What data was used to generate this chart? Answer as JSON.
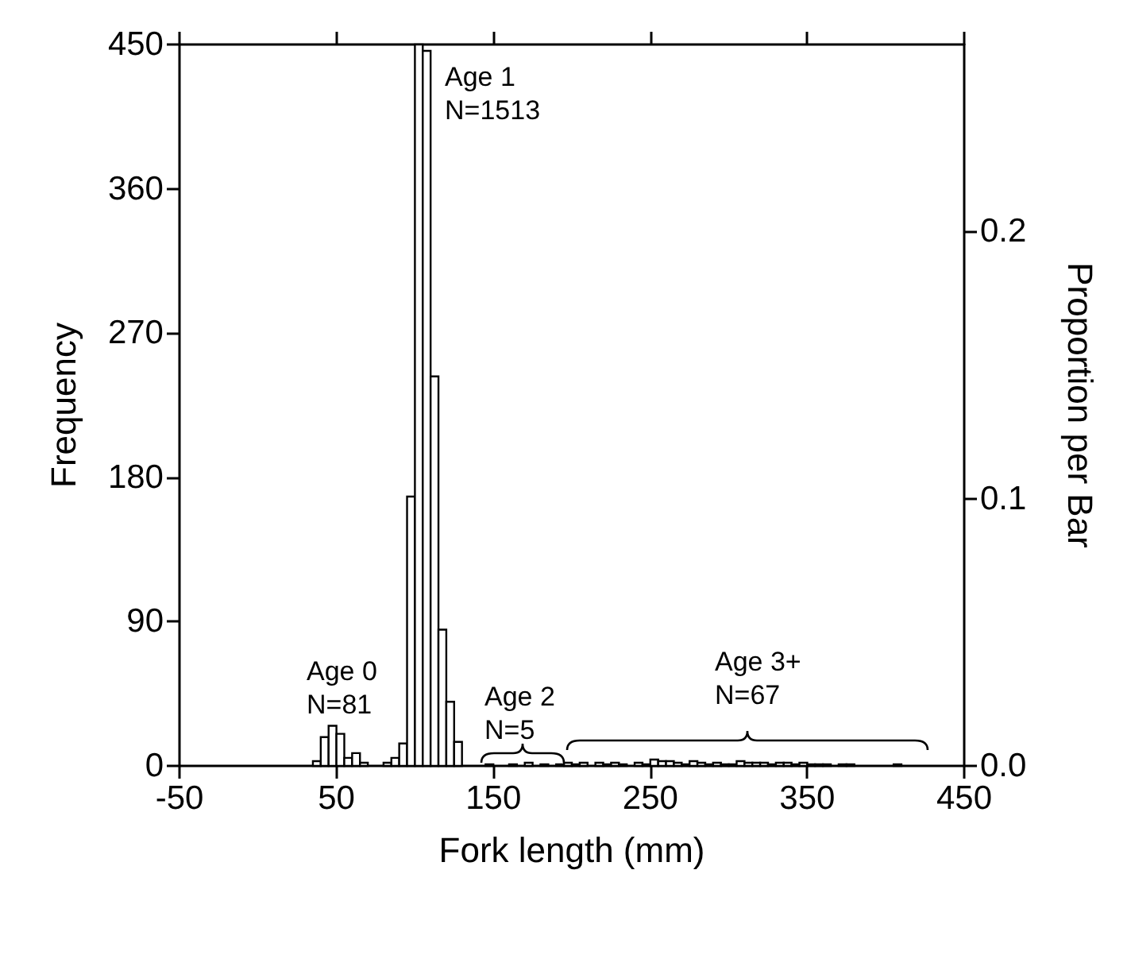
{
  "chart_data": {
    "type": "histogram",
    "xlabel": "Fork length (mm)",
    "ylabel": "Frequency",
    "y2label": "Proportion per Bar",
    "bins": [
      30,
      35,
      40,
      45,
      50,
      55,
      60,
      65,
      70,
      75,
      80,
      85,
      90,
      95,
      100,
      105,
      110,
      115,
      120,
      125,
      130,
      135,
      140,
      145,
      150,
      155,
      160,
      165,
      170,
      175,
      180,
      185,
      190,
      195,
      200,
      205,
      210,
      215,
      220,
      225,
      230,
      235,
      240,
      245,
      250,
      255,
      260,
      265,
      270,
      275,
      280,
      285,
      290,
      295,
      300,
      305,
      310,
      315,
      320,
      325,
      330,
      335,
      340,
      345,
      350,
      355,
      360,
      365,
      370,
      375,
      380,
      385,
      390,
      395,
      400,
      405,
      410,
      415,
      420,
      425,
      430
    ],
    "values": [
      0,
      3,
      18,
      25,
      20,
      5,
      8,
      2,
      0,
      0,
      2,
      5,
      14,
      168,
      450,
      446,
      243,
      85,
      40,
      15,
      0,
      0,
      0,
      1,
      0,
      0,
      1,
      0,
      2,
      0,
      1,
      0,
      1,
      2,
      1,
      2,
      0,
      2,
      1,
      2,
      1,
      0,
      2,
      1,
      4,
      3,
      3,
      2,
      1,
      3,
      2,
      1,
      2,
      1,
      1,
      3,
      2,
      2,
      2,
      1,
      2,
      2,
      1,
      2,
      1,
      1,
      1,
      0,
      1,
      1,
      0,
      0,
      0,
      0,
      0,
      1,
      0,
      0,
      0,
      0
    ],
    "color": "#ffffff",
    "xlim": [
      -50,
      450
    ],
    "xticks": [
      -50,
      50,
      150,
      250,
      350,
      450
    ],
    "ylim": [
      0,
      450
    ],
    "yticks": [
      0,
      90,
      180,
      270,
      360,
      450
    ],
    "y2lim": [
      0,
      0.27
    ],
    "y2ticks": [
      {
        "value": 0,
        "label": "0.0"
      },
      {
        "value": 0.1,
        "label": "0.1"
      },
      {
        "value": 0.2,
        "label": "0.2"
      }
    ],
    "annotations": [
      "Age 0\nN=81",
      "Age 1\nN=1513",
      "Age 2\nN=5",
      "Age 3+\nN=67"
    ]
  }
}
